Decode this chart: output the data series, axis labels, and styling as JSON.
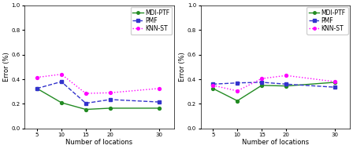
{
  "x": [
    5,
    10,
    15,
    20,
    30
  ],
  "left": {
    "mdi_ptf": [
      0.325,
      0.21,
      0.155,
      0.165,
      0.165
    ],
    "pmf": [
      0.325,
      0.38,
      0.205,
      0.235,
      0.215
    ],
    "knn_st": [
      0.415,
      0.44,
      0.285,
      0.29,
      0.325
    ]
  },
  "right": {
    "mdi_ptf": [
      0.325,
      0.225,
      0.35,
      0.345,
      0.375
    ],
    "pmf": [
      0.36,
      0.37,
      0.375,
      0.36,
      0.335
    ],
    "knn_st": [
      0.35,
      0.305,
      0.405,
      0.43,
      0.38
    ]
  },
  "colors": {
    "mdi_ptf": "#228B22",
    "pmf": "#3333cc",
    "knn_st": "#ff00ff"
  },
  "ylim": [
    0.0,
    1.0
  ],
  "yticks": [
    0.0,
    0.2,
    0.4,
    0.6,
    0.8,
    1.0
  ],
  "xticks": [
    5,
    10,
    15,
    20,
    30
  ],
  "xlabel": "Number of locations",
  "ylabel": "Error (%)",
  "fontsize": 6,
  "legend_fontsize": 5.5,
  "tick_fontsize": 5,
  "linewidth": 1.0,
  "markersize": 2.8
}
